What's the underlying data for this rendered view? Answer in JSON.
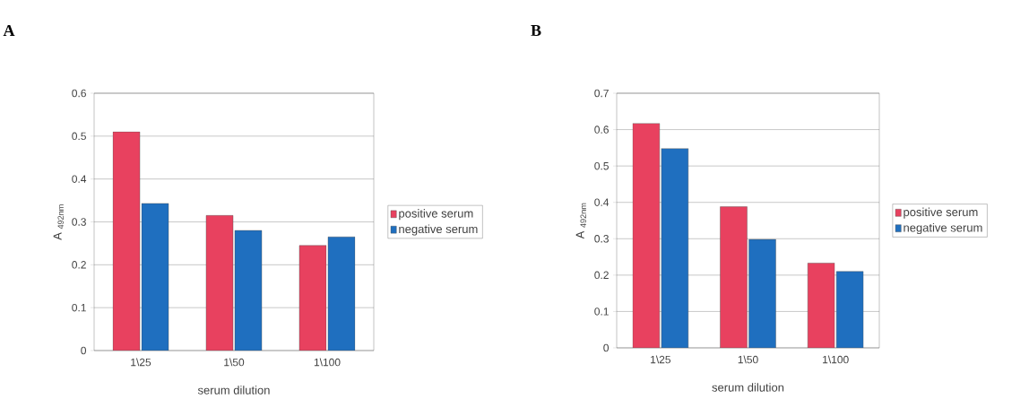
{
  "chart_data": [
    {
      "type": "bar",
      "title": "A",
      "xlabel": "serum dilution",
      "ylabel": "A $_{492nm}$",
      "categories": [
        "1\\25",
        "1\\50",
        "1\\100"
      ],
      "series": [
        {
          "name": "positive serum",
          "color": "#e8415f",
          "values": [
            0.51,
            0.315,
            0.245
          ]
        },
        {
          "name": "negative serum",
          "color": "#1f6fbf",
          "values": [
            0.343,
            0.28,
            0.265
          ]
        }
      ],
      "ylim": [
        0,
        0.6
      ],
      "yticks": [
        0,
        0.1,
        0.2,
        0.3,
        0.4,
        0.5,
        0.6
      ],
      "grid": "y",
      "legend": "right"
    },
    {
      "type": "bar",
      "title": "B",
      "xlabel": "serum dilution",
      "ylabel": "A $_{492nm}$",
      "categories": [
        "1\\25",
        "1\\50",
        "1\\100"
      ],
      "series": [
        {
          "name": "positive serum",
          "color": "#e8415f",
          "values": [
            0.617,
            0.388,
            0.233
          ]
        },
        {
          "name": "negative serum",
          "color": "#1f6fbf",
          "values": [
            0.548,
            0.298,
            0.21
          ]
        }
      ],
      "ylim": [
        0,
        0.7
      ],
      "yticks": [
        0,
        0.1,
        0.2,
        0.3,
        0.4,
        0.5,
        0.6,
        0.7
      ],
      "grid": "y",
      "legend": "right"
    }
  ]
}
